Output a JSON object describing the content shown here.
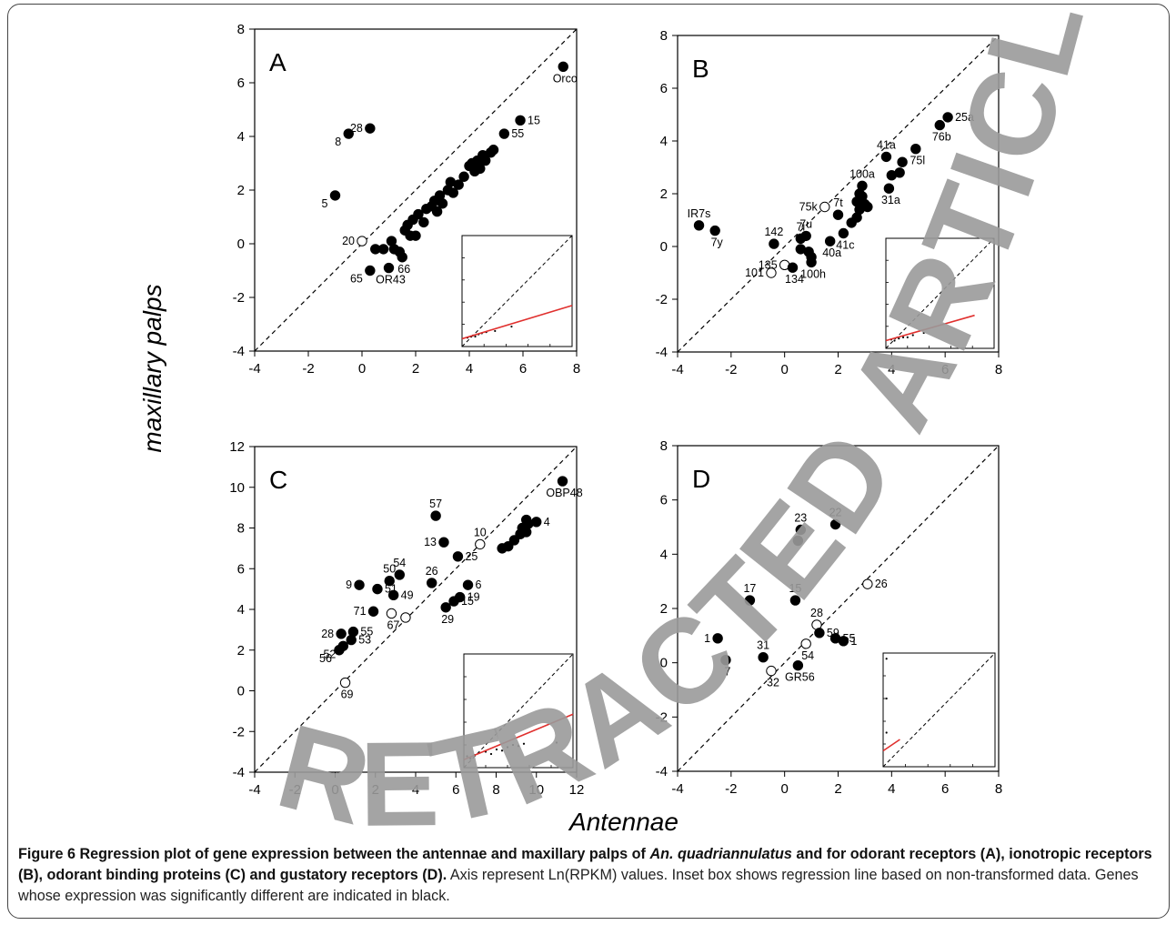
{
  "axis_labels": {
    "y": "maxillary palps",
    "x": "Antennae"
  },
  "caption": {
    "bold_part1": "Figure 6 Regression plot of gene expression between the antennae and maxillary palps of ",
    "species": "An. quadriannulatus",
    "bold_part2": " and for odorant receptors (A), ionotropic receptors (B), odorant binding proteins (C) and gustatory receptors (D).",
    "normal": " Axis represent Ln(RPKM) values. Inset box shows regression line based on non-transformed data. Genes whose expression was significantly different are indicated in black."
  },
  "watermark": "RETRACTED ARTICLE",
  "colors": {
    "point": "#000000",
    "regression": "#e0302e",
    "watermark": "#9a9a9a"
  },
  "chart_data": [
    {
      "type": "scatter",
      "panel_label": "A",
      "xlim": [
        -4,
        8
      ],
      "ylim": [
        -4,
        8
      ],
      "xticks": [
        -4,
        -2,
        0,
        2,
        4,
        6,
        8
      ],
      "yticks": [
        -4,
        -2,
        0,
        2,
        4,
        6,
        8
      ],
      "diagonal": "y = x (dashed)",
      "points": [
        {
          "x": 7.5,
          "y": 6.6,
          "label": "Orco",
          "sig": true
        },
        {
          "x": 5.9,
          "y": 4.6,
          "label": "15",
          "sig": true
        },
        {
          "x": 5.3,
          "y": 4.1,
          "label": "55",
          "sig": true
        },
        {
          "x": 0.3,
          "y": 4.3,
          "label": "28",
          "sig": true
        },
        {
          "x": -0.5,
          "y": 4.1,
          "label": "8",
          "sig": true
        },
        {
          "x": -1.0,
          "y": 1.8,
          "label": "5",
          "sig": true
        },
        {
          "x": 0.0,
          "y": 0.1,
          "label": "20",
          "sig": false
        },
        {
          "x": 1.5,
          "y": -0.5,
          "label": "66",
          "sig": true
        },
        {
          "x": 0.3,
          "y": -1.0,
          "label": "65",
          "sig": true
        },
        {
          "x": 1.0,
          "y": -0.9,
          "label": "OR43",
          "sig": true
        },
        {
          "x": 0.5,
          "y": -0.2,
          "label": "",
          "sig": true
        },
        {
          "x": 0.8,
          "y": -0.2,
          "label": "",
          "sig": true
        },
        {
          "x": 1.1,
          "y": 0.1,
          "label": "",
          "sig": true
        },
        {
          "x": 1.2,
          "y": -0.2,
          "label": "",
          "sig": true
        },
        {
          "x": 1.4,
          "y": -0.3,
          "label": "",
          "sig": true
        },
        {
          "x": 1.6,
          "y": 0.5,
          "label": "",
          "sig": true
        },
        {
          "x": 1.7,
          "y": 0.7,
          "label": "",
          "sig": true
        },
        {
          "x": 1.8,
          "y": 0.3,
          "label": "",
          "sig": true
        },
        {
          "x": 1.9,
          "y": 0.9,
          "label": "",
          "sig": true
        },
        {
          "x": 2.0,
          "y": 0.3,
          "label": "",
          "sig": true
        },
        {
          "x": 2.1,
          "y": 1.1,
          "label": "",
          "sig": true
        },
        {
          "x": 2.3,
          "y": 0.8,
          "label": "",
          "sig": true
        },
        {
          "x": 2.4,
          "y": 1.3,
          "label": "",
          "sig": true
        },
        {
          "x": 2.6,
          "y": 1.4,
          "label": "",
          "sig": true
        },
        {
          "x": 2.7,
          "y": 1.6,
          "label": "",
          "sig": true
        },
        {
          "x": 2.8,
          "y": 1.2,
          "label": "",
          "sig": true
        },
        {
          "x": 2.9,
          "y": 1.8,
          "label": "",
          "sig": true
        },
        {
          "x": 3.0,
          "y": 1.5,
          "label": "",
          "sig": true
        },
        {
          "x": 3.2,
          "y": 2.0,
          "label": "",
          "sig": true
        },
        {
          "x": 3.3,
          "y": 2.3,
          "label": "",
          "sig": true
        },
        {
          "x": 3.4,
          "y": 1.9,
          "label": "",
          "sig": true
        },
        {
          "x": 3.6,
          "y": 2.2,
          "label": "",
          "sig": true
        },
        {
          "x": 3.8,
          "y": 2.5,
          "label": "",
          "sig": true
        },
        {
          "x": 4.0,
          "y": 2.9,
          "label": "",
          "sig": true
        },
        {
          "x": 4.1,
          "y": 3.0,
          "label": "",
          "sig": true
        },
        {
          "x": 4.2,
          "y": 2.7,
          "label": "",
          "sig": true
        },
        {
          "x": 4.3,
          "y": 3.1,
          "label": "",
          "sig": true
        },
        {
          "x": 4.4,
          "y": 2.8,
          "label": "",
          "sig": true
        },
        {
          "x": 4.5,
          "y": 3.3,
          "label": "",
          "sig": true
        },
        {
          "x": 4.6,
          "y": 3.1,
          "label": "",
          "sig": true
        },
        {
          "x": 4.8,
          "y": 3.4,
          "label": "",
          "sig": true
        },
        {
          "x": 4.9,
          "y": 3.5,
          "label": "",
          "sig": true
        }
      ],
      "inset": {
        "regression": [
          [
            0.0,
            0.07
          ],
          [
            1.0,
            0.37
          ]
        ],
        "dots": [
          [
            0.05,
            0.08
          ],
          [
            0.08,
            0.09
          ],
          [
            0.1,
            0.1
          ],
          [
            0.12,
            0.09
          ],
          [
            0.15,
            0.11
          ],
          [
            0.18,
            0.12
          ],
          [
            0.22,
            0.13
          ],
          [
            0.3,
            0.14
          ],
          [
            0.45,
            0.18
          ]
        ]
      }
    },
    {
      "type": "scatter",
      "panel_label": "B",
      "xlim": [
        -4,
        8
      ],
      "ylim": [
        -4,
        8
      ],
      "xticks": [
        -4,
        -2,
        0,
        2,
        4,
        6,
        8
      ],
      "yticks": [
        -4,
        -2,
        0,
        2,
        4,
        6,
        8
      ],
      "diagonal": "y = x (dashed)",
      "points": [
        {
          "x": 6.1,
          "y": 4.9,
          "label": "25a",
          "sig": true
        },
        {
          "x": 5.8,
          "y": 4.6,
          "label": "76b",
          "sig": true
        },
        {
          "x": 4.9,
          "y": 3.7,
          "label": "75l",
          "sig": true
        },
        {
          "x": 3.8,
          "y": 3.4,
          "label": "41a",
          "sig": true
        },
        {
          "x": 3.9,
          "y": 2.2,
          "label": "31a",
          "sig": true
        },
        {
          "x": 2.9,
          "y": 2.3,
          "label": "100a",
          "sig": true
        },
        {
          "x": 1.5,
          "y": 1.5,
          "label": "75k",
          "sig": false
        },
        {
          "x": 2.0,
          "y": 1.2,
          "label": "7t",
          "sig": true
        },
        {
          "x": -3.2,
          "y": 0.8,
          "label": "IR7s",
          "sig": true
        },
        {
          "x": -2.6,
          "y": 0.6,
          "label": "7y",
          "sig": true
        },
        {
          "x": -0.4,
          "y": 0.1,
          "label": "142",
          "sig": true
        },
        {
          "x": 0.6,
          "y": 0.3,
          "label": "7i",
          "sig": true
        },
        {
          "x": 0.8,
          "y": 0.4,
          "label": "7u",
          "sig": true
        },
        {
          "x": 2.2,
          "y": 0.5,
          "label": "41c",
          "sig": true
        },
        {
          "x": 1.7,
          "y": 0.2,
          "label": "40a",
          "sig": true
        },
        {
          "x": 0.0,
          "y": -0.7,
          "label": "135",
          "sig": false
        },
        {
          "x": -0.5,
          "y": -1.0,
          "label": "101",
          "sig": false
        },
        {
          "x": 0.3,
          "y": -0.8,
          "label": "134",
          "sig": true
        },
        {
          "x": 1.0,
          "y": -0.6,
          "label": "100h",
          "sig": true
        },
        {
          "x": 0.6,
          "y": -0.1,
          "label": "",
          "sig": true
        },
        {
          "x": 0.9,
          "y": -0.2,
          "label": "",
          "sig": true
        },
        {
          "x": 1.0,
          "y": -0.4,
          "label": "",
          "sig": true
        },
        {
          "x": 2.5,
          "y": 0.9,
          "label": "",
          "sig": true
        },
        {
          "x": 2.7,
          "y": 1.1,
          "label": "",
          "sig": true
        },
        {
          "x": 2.8,
          "y": 1.4,
          "label": "",
          "sig": true
        },
        {
          "x": 2.7,
          "y": 1.7,
          "label": "",
          "sig": true
        },
        {
          "x": 2.9,
          "y": 1.9,
          "label": "",
          "sig": true
        },
        {
          "x": 3.0,
          "y": 1.6,
          "label": "",
          "sig": true
        },
        {
          "x": 3.1,
          "y": 1.5,
          "label": "",
          "sig": true
        },
        {
          "x": 2.8,
          "y": 2.0,
          "label": "",
          "sig": true
        },
        {
          "x": 4.0,
          "y": 2.7,
          "label": "",
          "sig": true
        },
        {
          "x": 4.3,
          "y": 2.8,
          "label": "",
          "sig": true
        },
        {
          "x": 4.4,
          "y": 3.2,
          "label": "",
          "sig": true
        }
      ],
      "inset": {
        "regression": [
          [
            0.0,
            0.07
          ],
          [
            0.82,
            0.3
          ]
        ],
        "dots": [
          [
            0.05,
            0.08
          ],
          [
            0.08,
            0.07
          ],
          [
            0.12,
            0.09
          ],
          [
            0.16,
            0.1
          ],
          [
            0.2,
            0.1
          ],
          [
            0.25,
            0.12
          ],
          [
            0.35,
            0.14
          ]
        ]
      }
    },
    {
      "type": "scatter",
      "panel_label": "C",
      "xlim": [
        -4,
        12
      ],
      "ylim": [
        -4,
        12
      ],
      "xticks": [
        -4,
        -2,
        0,
        2,
        4,
        6,
        8,
        10,
        12
      ],
      "yticks": [
        -4,
        -2,
        0,
        2,
        4,
        6,
        8,
        10,
        12
      ],
      "diagonal": "y = x (dashed)",
      "points": [
        {
          "x": 11.3,
          "y": 10.3,
          "label": "OBP48",
          "sig": true
        },
        {
          "x": 5.0,
          "y": 8.6,
          "label": "57",
          "sig": true
        },
        {
          "x": 10.0,
          "y": 8.3,
          "label": "4",
          "sig": true
        },
        {
          "x": 7.2,
          "y": 7.2,
          "label": "10",
          "sig": false
        },
        {
          "x": 5.4,
          "y": 7.3,
          "label": "13",
          "sig": true
        },
        {
          "x": 6.1,
          "y": 6.6,
          "label": "25",
          "sig": true
        },
        {
          "x": 3.2,
          "y": 5.7,
          "label": "54",
          "sig": true
        },
        {
          "x": 2.7,
          "y": 5.4,
          "label": "50",
          "sig": true
        },
        {
          "x": 1.2,
          "y": 5.2,
          "label": "9",
          "sig": true
        },
        {
          "x": 2.1,
          "y": 5.0,
          "label": "51",
          "sig": true
        },
        {
          "x": 2.9,
          "y": 4.7,
          "label": "49",
          "sig": true
        },
        {
          "x": 4.8,
          "y": 5.3,
          "label": "26",
          "sig": true
        },
        {
          "x": 6.6,
          "y": 5.2,
          "label": "6",
          "sig": true
        },
        {
          "x": 6.2,
          "y": 4.6,
          "label": "19",
          "sig": true
        },
        {
          "x": 5.9,
          "y": 4.4,
          "label": "15",
          "sig": true
        },
        {
          "x": 5.5,
          "y": 4.1,
          "label": "29",
          "sig": true
        },
        {
          "x": 1.9,
          "y": 3.9,
          "label": "71",
          "sig": true
        },
        {
          "x": 2.8,
          "y": 3.8,
          "label": "67",
          "sig": false
        },
        {
          "x": 3.5,
          "y": 3.6,
          "label": "",
          "sig": false
        },
        {
          "x": 0.3,
          "y": 2.8,
          "label": "28",
          "sig": true
        },
        {
          "x": 0.9,
          "y": 2.9,
          "label": "55",
          "sig": true
        },
        {
          "x": 0.8,
          "y": 2.5,
          "label": "53",
          "sig": true
        },
        {
          "x": 0.4,
          "y": 2.2,
          "label": "52",
          "sig": true
        },
        {
          "x": 0.2,
          "y": 2.0,
          "label": "56",
          "sig": true
        },
        {
          "x": 0.5,
          "y": 0.4,
          "label": "69",
          "sig": false
        },
        {
          "x": 8.3,
          "y": 7.0,
          "label": "",
          "sig": true
        },
        {
          "x": 8.6,
          "y": 7.1,
          "label": "",
          "sig": true
        },
        {
          "x": 8.9,
          "y": 7.4,
          "label": "",
          "sig": true
        },
        {
          "x": 9.2,
          "y": 7.7,
          "label": "",
          "sig": true
        },
        {
          "x": 9.3,
          "y": 8.0,
          "label": "",
          "sig": true
        },
        {
          "x": 9.5,
          "y": 7.8,
          "label": "",
          "sig": true
        },
        {
          "x": 9.6,
          "y": 8.2,
          "label": "",
          "sig": true
        },
        {
          "x": 9.5,
          "y": 8.4,
          "label": "",
          "sig": true
        }
      ],
      "inset": {
        "regression": [
          [
            0.0,
            0.07
          ],
          [
            1.0,
            0.47
          ]
        ],
        "dots": [
          [
            0.03,
            0.1
          ],
          [
            0.06,
            0.08
          ],
          [
            0.1,
            0.11
          ],
          [
            0.14,
            0.13
          ],
          [
            0.2,
            0.14
          ],
          [
            0.25,
            0.12
          ],
          [
            0.3,
            0.16
          ],
          [
            0.35,
            0.15
          ],
          [
            0.4,
            0.18
          ],
          [
            0.45,
            0.2
          ],
          [
            0.5,
            0.19
          ],
          [
            0.55,
            0.21
          ],
          [
            0.85,
            0.22
          ]
        ]
      }
    },
    {
      "type": "scatter",
      "panel_label": "D",
      "xlim": [
        -4,
        8
      ],
      "ylim": [
        -4,
        8
      ],
      "xticks": [
        -4,
        -2,
        0,
        2,
        4,
        6,
        8
      ],
      "yticks": [
        -4,
        -2,
        0,
        2,
        4,
        6,
        8
      ],
      "diagonal": "y = x (dashed)",
      "points": [
        {
          "x": 0.6,
          "y": 4.9,
          "label": "23",
          "sig": true
        },
        {
          "x": 1.9,
          "y": 5.1,
          "label": "22",
          "sig": true
        },
        {
          "x": 0.5,
          "y": 4.5,
          "label": "",
          "sig": true
        },
        {
          "x": 3.1,
          "y": 2.9,
          "label": "26",
          "sig": false
        },
        {
          "x": -1.3,
          "y": 2.3,
          "label": "17",
          "sig": true
        },
        {
          "x": 0.4,
          "y": 2.3,
          "label": "15",
          "sig": true
        },
        {
          "x": 1.2,
          "y": 1.4,
          "label": "28",
          "sig": false
        },
        {
          "x": 1.3,
          "y": 1.1,
          "label": "59",
          "sig": true
        },
        {
          "x": 1.9,
          "y": 0.9,
          "label": "55",
          "sig": true
        },
        {
          "x": 2.2,
          "y": 0.8,
          "label": "1",
          "sig": true
        },
        {
          "x": 0.8,
          "y": 0.7,
          "label": "54",
          "sig": false
        },
        {
          "x": -2.5,
          "y": 0.9,
          "label": "1",
          "sig": true
        },
        {
          "x": -2.2,
          "y": 0.1,
          "label": "7",
          "sig": true
        },
        {
          "x": -0.8,
          "y": 0.2,
          "label": "31",
          "sig": true
        },
        {
          "x": -0.5,
          "y": -0.3,
          "label": "32",
          "sig": false
        },
        {
          "x": 0.5,
          "y": -0.1,
          "label": "GR56",
          "sig": true
        }
      ],
      "inset": {
        "regression": [
          [
            0.0,
            0.14
          ],
          [
            0.15,
            0.24
          ]
        ],
        "dots": [
          [
            0.03,
            0.95
          ],
          [
            0.03,
            0.6
          ],
          [
            0.03,
            0.3
          ]
        ]
      }
    }
  ]
}
